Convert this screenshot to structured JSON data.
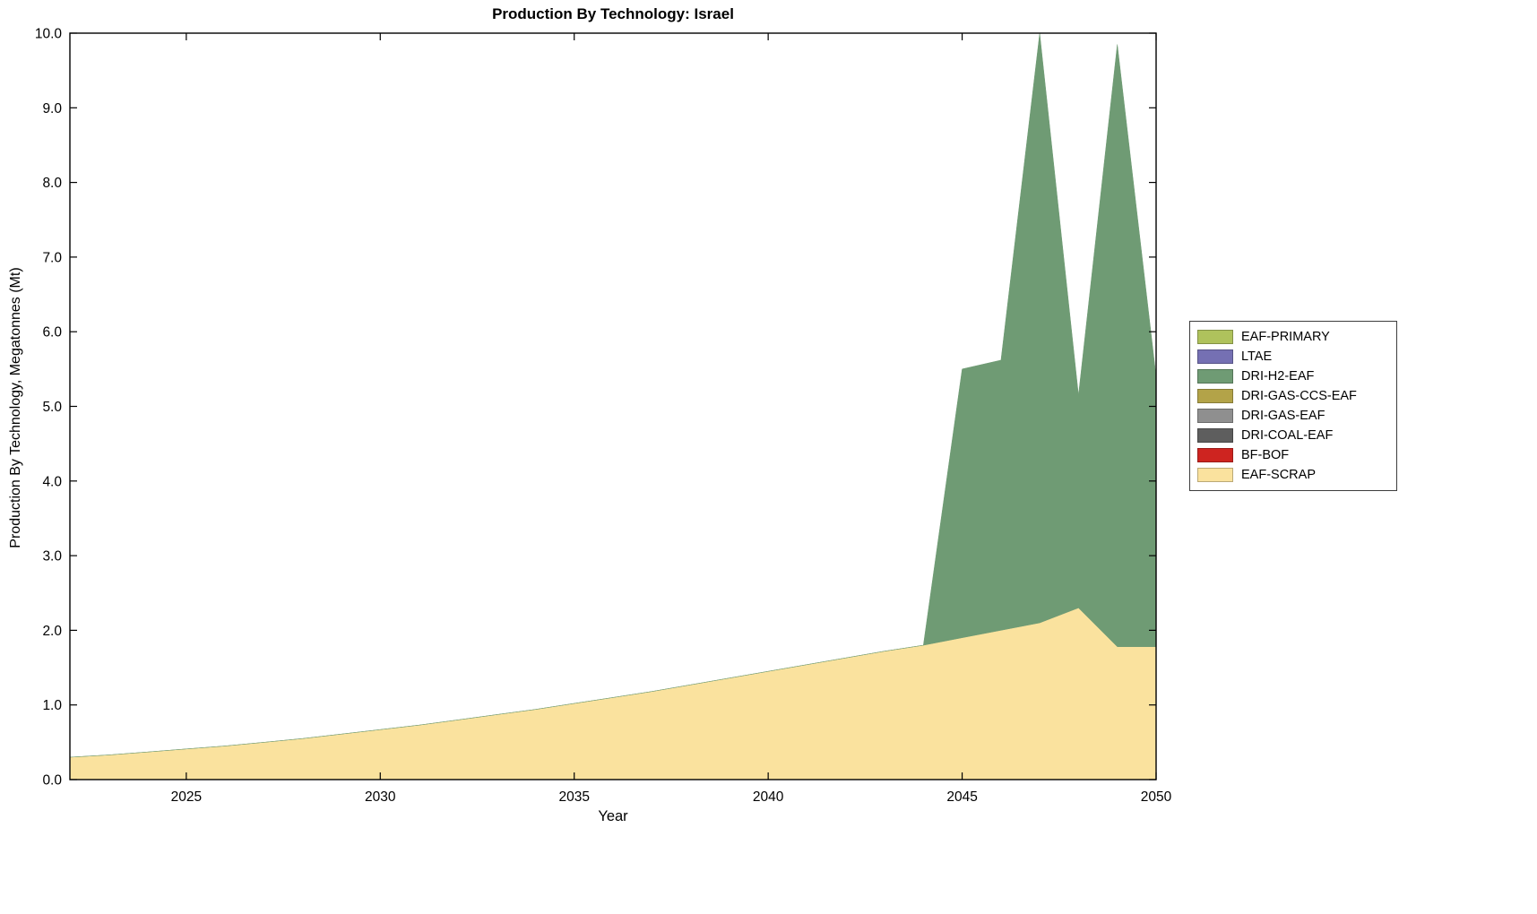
{
  "figure": {
    "title": "Production By Technology: Israel",
    "xlabel": "Year",
    "ylabel": "Production By Technology, Megatonnes (Mt)"
  },
  "chart_data": {
    "type": "area",
    "stacked": true,
    "title": "Production By Technology: Israel",
    "xlabel": "Year",
    "ylabel": "Production By Technology, Megatonnes (Mt)",
    "xlim": [
      2022,
      2050
    ],
    "ylim": [
      0,
      10
    ],
    "grid": false,
    "legend_position": "right-outside",
    "xticks": [
      2025,
      2030,
      2035,
      2040,
      2045,
      2050
    ],
    "xtick_labels": [
      "2025",
      "2030",
      "2035",
      "2040",
      "2045",
      "2050"
    ],
    "yticks": [
      0,
      1,
      2,
      3,
      4,
      5,
      6,
      7,
      8,
      9,
      10
    ],
    "ytick_labels": [
      "0.0",
      "1.0",
      "2.0",
      "3.0",
      "4.0",
      "5.0",
      "6.0",
      "7.0",
      "8.0",
      "9.0",
      "10.0"
    ],
    "x": [
      2022,
      2023,
      2024,
      2025,
      2026,
      2027,
      2028,
      2029,
      2030,
      2031,
      2032,
      2033,
      2034,
      2035,
      2036,
      2037,
      2038,
      2039,
      2040,
      2041,
      2042,
      2043,
      2044,
      2045,
      2046,
      2047,
      2048,
      2049,
      2050
    ],
    "series": [
      {
        "name": "EAF-SCRAP",
        "color": "#FAE29E",
        "values": [
          0.3,
          0.33,
          0.37,
          0.41,
          0.45,
          0.5,
          0.55,
          0.61,
          0.67,
          0.73,
          0.8,
          0.87,
          0.94,
          1.02,
          1.1,
          1.18,
          1.27,
          1.36,
          1.45,
          1.54,
          1.63,
          1.72,
          1.8,
          1.9,
          2.0,
          2.1,
          2.3,
          1.78,
          1.78
        ]
      },
      {
        "name": "DRI-H2-EAF",
        "color": "#6F9B74",
        "values": [
          0,
          0,
          0,
          0,
          0,
          0,
          0,
          0,
          0,
          0,
          0,
          0,
          0,
          0,
          0,
          0,
          0,
          0,
          0,
          0,
          0,
          0,
          0.0,
          3.6,
          3.62,
          7.9,
          2.85,
          8.07,
          3.62
        ]
      }
    ],
    "legend": [
      {
        "label": "EAF-PRIMARY",
        "color": "#AFC25C"
      },
      {
        "label": "LTAE",
        "color": "#7570B3"
      },
      {
        "label": "DRI-H2-EAF",
        "color": "#6F9B74"
      },
      {
        "label": "DRI-GAS-CCS-EAF",
        "color": "#B3A348"
      },
      {
        "label": "DRI-GAS-EAF",
        "color": "#8F8F8F"
      },
      {
        "label": "DRI-COAL-EAF",
        "color": "#5E5E5E"
      },
      {
        "label": "BF-BOF",
        "color": "#CE2420"
      },
      {
        "label": "EAF-SCRAP",
        "color": "#FAE29E"
      }
    ]
  }
}
